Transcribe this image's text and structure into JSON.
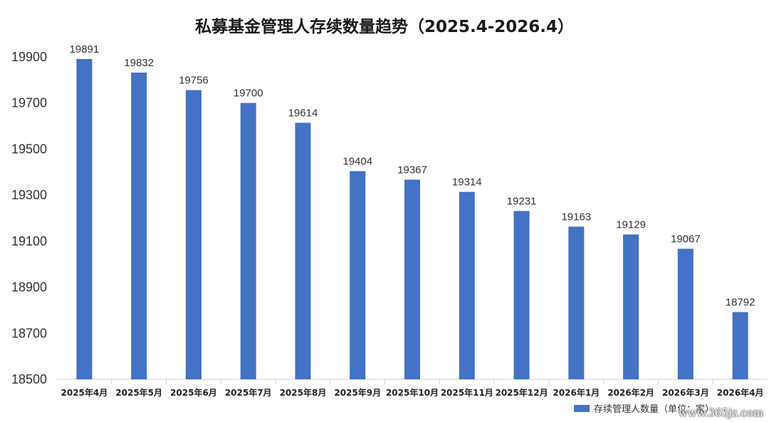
{
  "chart_data": {
    "type": "bar",
    "title": "私募基金管理人存续数量趋势（2025.4-2026.4）",
    "categories": [
      "2025年4月",
      "2025年5月",
      "2025年6月",
      "2025年7月",
      "2025年8月",
      "2025年9月",
      "2025年10月",
      "2025年11月",
      "2025年12月",
      "2026年1月",
      "2026年2月",
      "2026年3月",
      "2026年4月"
    ],
    "series": [
      {
        "name": "存续管理人数量（单位：家）",
        "values": [
          19891,
          19832,
          19756,
          19700,
          19614,
          19404,
          19367,
          19314,
          19231,
          19163,
          19129,
          19067,
          18792
        ]
      }
    ],
    "ylim": [
      18500,
      19900
    ],
    "yticks": [
      18500,
      18700,
      18900,
      19100,
      19300,
      19500,
      19700,
      19900
    ],
    "bar_color": "#4472c4",
    "legend_position": "bottom-right",
    "grid": false
  },
  "watermark": "www.365jz.com"
}
